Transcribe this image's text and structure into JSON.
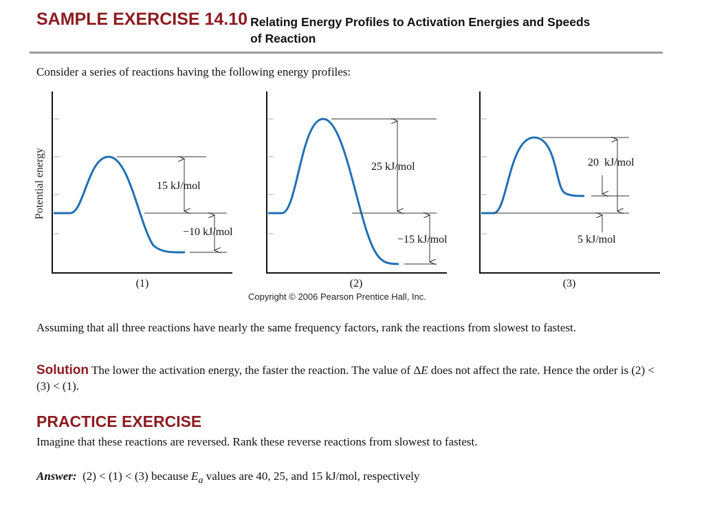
{
  "header": {
    "exercise_label": "SAMPLE EXERCISE 14.10",
    "subtitle": "Relating Energy Profiles to Activation Energies and Speeds of Reaction"
  },
  "intro": "Consider a series of reactions having the following energy profiles:",
  "figure": {
    "y_axis_label": "Potential energy",
    "panels": [
      {
        "label": "(1)",
        "activation_energy_label": "15 kJ/mol",
        "delta_e_label": "−10 kJ/mol",
        "activation_energy_kj": 15,
        "delta_e_kj": -10
      },
      {
        "label": "(2)",
        "activation_energy_label": "25 kJ/mol",
        "delta_e_label": "−15 kJ/mol",
        "activation_energy_kj": 25,
        "delta_e_kj": -15
      },
      {
        "label": "(3)",
        "activation_energy_label": "20  kJ/mol",
        "delta_e_label": "5 kJ/mol",
        "activation_energy_kj": 20,
        "delta_e_kj": 5
      }
    ],
    "copyright": "Copyright © 2006 Pearson Prentice Hall, Inc."
  },
  "question": "Assuming that all three reactions have nearly the same frequency factors, rank the reactions from slowest to fastest.",
  "solution": {
    "label": "Solution",
    "text_before": "The lower the activation energy, the faster the reaction. The value of Δ",
    "symbol": "E",
    "text_after": " does not affect the rate. Hence the order is  (2) < (3) < (1)."
  },
  "practice": {
    "heading": "PRACTICE EXERCISE",
    "prompt": "Imagine that these reactions are reversed. Rank these reverse reactions from slowest to fastest."
  },
  "answer": {
    "label": "Answer:",
    "text_before": "(2) < (1) < (3) because ",
    "symbol": "E",
    "subscript": "a",
    "text_after": " values are 40, 25, and 15 kJ/mol, respectively"
  }
}
